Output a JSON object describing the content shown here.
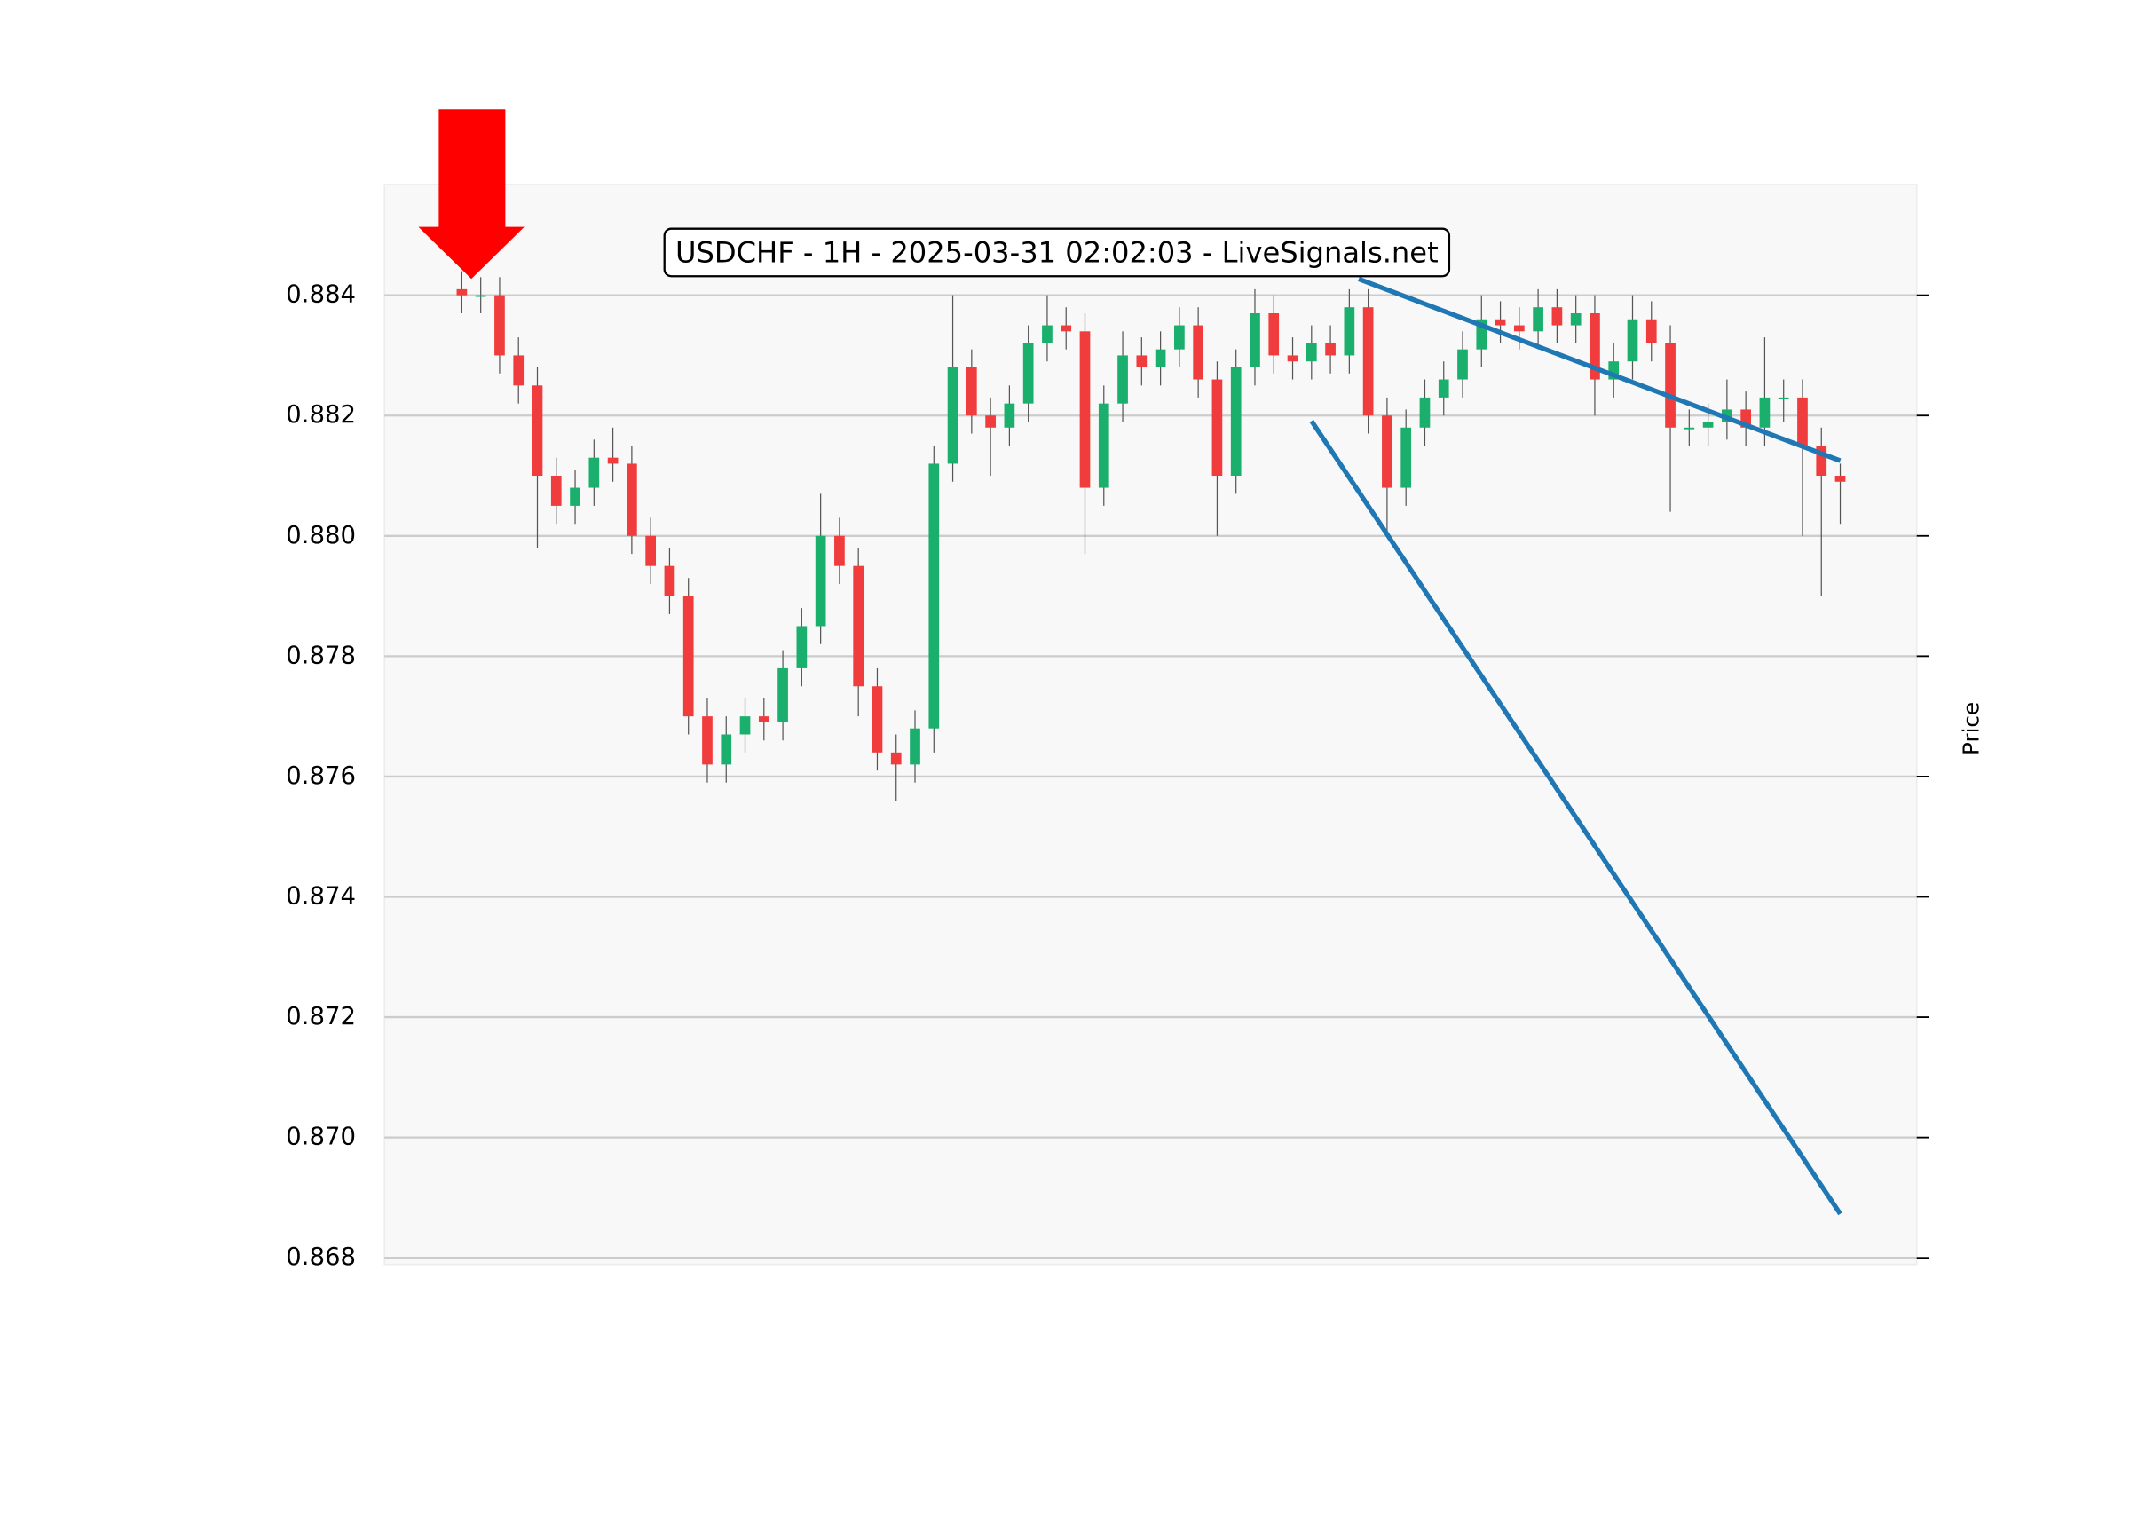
{
  "chart_data": {
    "type": "candlestick",
    "title": "USDCHF - 1H - 2025-03-31 02:02:03 - LiveSignals.net",
    "ylabel": "Price",
    "grid": true,
    "up_color": "#1aaf6c",
    "down_color": "#f03c3c",
    "xlim": [
      -4.1,
      77.05
    ],
    "ylim": [
      0.86789,
      0.88584
    ],
    "yticks": [
      0.868,
      {
        "value": 0.87,
        "label": "0.870"
      },
      0.872,
      0.874,
      0.876,
      0.878,
      {
        "value": 0.88,
        "label": "0.880"
      },
      0.882,
      0.884
    ],
    "open": [
      0.8841,
      0.884,
      0.884,
      0.883,
      0.8825,
      0.881,
      0.8805,
      0.8808,
      0.8813,
      0.8812,
      0.88,
      0.8795,
      0.879,
      0.877,
      0.8762,
      0.8767,
      0.877,
      0.8769,
      0.8778,
      0.8785,
      0.88,
      0.8795,
      0.8775,
      0.8764,
      0.8762,
      0.8768,
      0.8812,
      0.8828,
      0.882,
      0.8818,
      0.8822,
      0.8832,
      0.8835,
      0.8834,
      0.8808,
      0.8822,
      0.883,
      0.8828,
      0.8831,
      0.8835,
      0.8826,
      0.881,
      0.8828,
      0.8837,
      0.883,
      0.8829,
      0.8832,
      0.883,
      0.8838,
      0.882,
      0.8808,
      0.8818,
      0.8823,
      0.8826,
      0.8831,
      0.8836,
      0.8835,
      0.8834,
      0.8838,
      0.8835,
      0.8837,
      0.8826,
      0.8829,
      0.8836,
      0.8832,
      0.8818,
      0.8818,
      0.8819,
      0.8821,
      0.8818,
      0.8823,
      0.8823,
      0.8815,
      0.881
    ],
    "high": [
      0.8844,
      0.8843,
      0.8843,
      0.8833,
      0.8828,
      0.8813,
      0.8811,
      0.8816,
      0.8818,
      0.8815,
      0.8803,
      0.8798,
      0.8793,
      0.8773,
      0.877,
      0.8773,
      0.8773,
      0.8781,
      0.8788,
      0.8807,
      0.8803,
      0.8798,
      0.8778,
      0.8767,
      0.8771,
      0.8815,
      0.884,
      0.8831,
      0.8823,
      0.8825,
      0.8835,
      0.884,
      0.8838,
      0.8837,
      0.8825,
      0.8834,
      0.8833,
      0.8834,
      0.8838,
      0.8838,
      0.8829,
      0.8831,
      0.8841,
      0.884,
      0.8833,
      0.8835,
      0.8835,
      0.8841,
      0.8841,
      0.8823,
      0.8821,
      0.8826,
      0.8829,
      0.8834,
      0.884,
      0.8839,
      0.8838,
      0.8841,
      0.8841,
      0.884,
      0.884,
      0.8832,
      0.884,
      0.8839,
      0.8835,
      0.8821,
      0.8822,
      0.8826,
      0.8824,
      0.8833,
      0.8826,
      0.8826,
      0.8818,
      0.8812
    ],
    "low": [
      0.8837,
      0.8837,
      0.8827,
      0.8822,
      0.8798,
      0.8802,
      0.8802,
      0.8805,
      0.8809,
      0.8797,
      0.8792,
      0.8787,
      0.8767,
      0.8759,
      0.8759,
      0.8764,
      0.8766,
      0.8766,
      0.8775,
      0.8782,
      0.8792,
      0.877,
      0.8761,
      0.8756,
      0.8759,
      0.8764,
      0.8809,
      0.8817,
      0.881,
      0.8815,
      0.8819,
      0.8829,
      0.8831,
      0.8797,
      0.8805,
      0.8819,
      0.8825,
      0.8825,
      0.8828,
      0.8823,
      0.88,
      0.8807,
      0.8825,
      0.8827,
      0.8826,
      0.8826,
      0.8827,
      0.8827,
      0.8817,
      0.88,
      0.8805,
      0.8815,
      0.882,
      0.8823,
      0.8828,
      0.8832,
      0.8831,
      0.8831,
      0.8832,
      0.8832,
      0.882,
      0.8823,
      0.8826,
      0.8829,
      0.8804,
      0.8815,
      0.8815,
      0.8816,
      0.8815,
      0.8815,
      0.8819,
      0.88,
      0.879,
      0.8802
    ],
    "close": [
      0.884,
      0.884,
      0.883,
      0.8825,
      0.881,
      0.8805,
      0.8808,
      0.8813,
      0.8812,
      0.88,
      0.8795,
      0.879,
      0.877,
      0.8762,
      0.8767,
      0.877,
      0.8769,
      0.8778,
      0.8785,
      0.88,
      0.8795,
      0.8775,
      0.8764,
      0.8762,
      0.8768,
      0.8812,
      0.8828,
      0.882,
      0.8818,
      0.8822,
      0.8832,
      0.8835,
      0.8834,
      0.8808,
      0.8822,
      0.883,
      0.8828,
      0.8831,
      0.8835,
      0.8826,
      0.881,
      0.8828,
      0.8837,
      0.883,
      0.8829,
      0.8832,
      0.883,
      0.8838,
      0.882,
      0.8808,
      0.8818,
      0.8823,
      0.8826,
      0.8831,
      0.8836,
      0.8835,
      0.8834,
      0.8838,
      0.8835,
      0.8837,
      0.8826,
      0.8829,
      0.8836,
      0.8832,
      0.8818,
      0.8818,
      0.8819,
      0.8821,
      0.8818,
      0.8823,
      0.8823,
      0.8815,
      0.881,
      0.8809
    ],
    "lines": [
      {
        "color": "#1f77b4",
        "x": [
          47.5,
          73
        ],
        "y": [
          0.88427,
          0.88125
        ]
      },
      {
        "color": "#1f77b4",
        "x": [
          45.0,
          73
        ],
        "y": [
          0.88191,
          0.86873
        ]
      }
    ]
  }
}
